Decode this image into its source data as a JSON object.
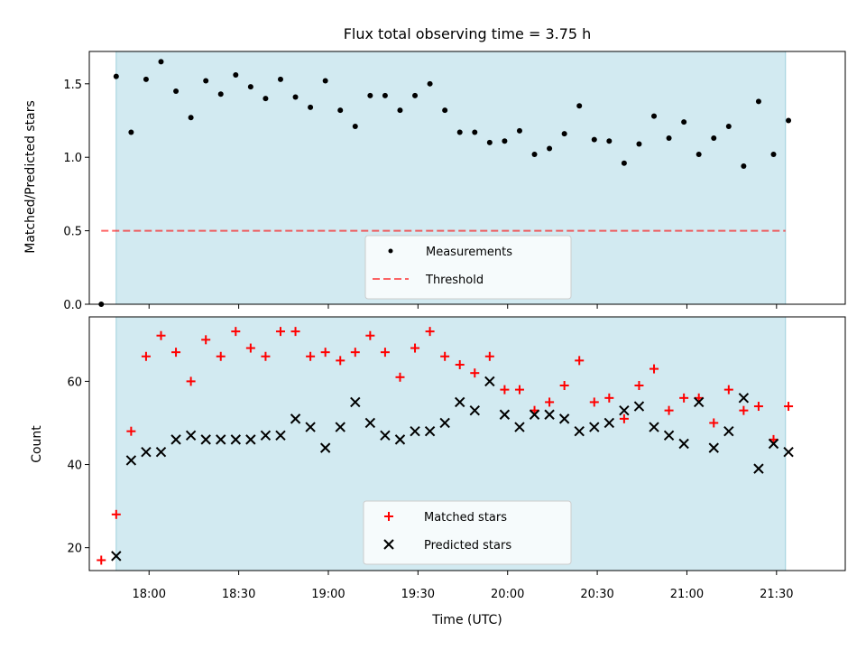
{
  "chart_data": [
    {
      "type": "scatter",
      "title": "Flux total observing time = 3.75 h",
      "xlabel": "",
      "ylabel": "Matched/Predicted stars",
      "xlim": [
        "17:40",
        "21:53"
      ],
      "ylim": [
        0,
        1.72
      ],
      "yticks": [
        "0.0",
        "0.5",
        "1.0",
        "1.5"
      ],
      "shaded_region": [
        "17:49",
        "21:33"
      ],
      "shaded_color": "#add8e6",
      "legend_position": "lower center",
      "series": [
        {
          "name": "Measurements",
          "marker": "dot",
          "color": "#000000",
          "points": [
            [
              "17:44",
              0.0
            ],
            [
              "17:49",
              1.55
            ],
            [
              "17:54",
              1.17
            ],
            [
              "17:59",
              1.53
            ],
            [
              "18:04",
              1.65
            ],
            [
              "18:09",
              1.45
            ],
            [
              "18:14",
              1.27
            ],
            [
              "18:19",
              1.52
            ],
            [
              "18:24",
              1.43
            ],
            [
              "18:29",
              1.56
            ],
            [
              "18:34",
              1.48
            ],
            [
              "18:39",
              1.4
            ],
            [
              "18:44",
              1.53
            ],
            [
              "18:49",
              1.41
            ],
            [
              "18:54",
              1.34
            ],
            [
              "18:59",
              1.52
            ],
            [
              "19:04",
              1.32
            ],
            [
              "19:09",
              1.21
            ],
            [
              "19:14",
              1.42
            ],
            [
              "19:19",
              1.42
            ],
            [
              "19:24",
              1.32
            ],
            [
              "19:29",
              1.42
            ],
            [
              "19:34",
              1.5
            ],
            [
              "19:39",
              1.32
            ],
            [
              "19:44",
              1.17
            ],
            [
              "19:49",
              1.17
            ],
            [
              "19:54",
              1.1
            ],
            [
              "19:59",
              1.11
            ],
            [
              "20:04",
              1.18
            ],
            [
              "20:09",
              1.02
            ],
            [
              "20:14",
              1.06
            ],
            [
              "20:19",
              1.16
            ],
            [
              "20:24",
              1.35
            ],
            [
              "20:29",
              1.12
            ],
            [
              "20:34",
              1.11
            ],
            [
              "20:39",
              0.96
            ],
            [
              "20:44",
              1.09
            ],
            [
              "20:49",
              1.28
            ],
            [
              "20:54",
              1.13
            ],
            [
              "20:59",
              1.24
            ],
            [
              "21:04",
              1.02
            ],
            [
              "21:09",
              1.13
            ],
            [
              "21:14",
              1.21
            ],
            [
              "21:19",
              0.94
            ],
            [
              "21:24",
              1.38
            ],
            [
              "21:29",
              1.02
            ],
            [
              "21:34",
              1.25
            ]
          ]
        },
        {
          "name": "Threshold",
          "marker": "dashed-line",
          "color": "#ff0000",
          "points": [
            [
              "17:44",
              0.5
            ],
            [
              "21:33",
              0.5
            ]
          ]
        }
      ]
    },
    {
      "type": "scatter",
      "title": "",
      "xlabel": "Time (UTC)",
      "ylabel": "Count",
      "xlim": [
        "17:40",
        "21:53"
      ],
      "ylim": [
        14.5,
        75.5
      ],
      "yticks": [
        "20",
        "40",
        "60"
      ],
      "xticks": [
        "18:00",
        "18:30",
        "19:00",
        "19:30",
        "20:00",
        "20:30",
        "21:00",
        "21:30"
      ],
      "shaded_region": [
        "17:49",
        "21:33"
      ],
      "shaded_color": "#add8e6",
      "legend_position": "lower center",
      "series": [
        {
          "name": "Matched stars",
          "marker": "plus",
          "color": "#ff0000",
          "points": [
            [
              "17:44",
              17
            ],
            [
              "17:49",
              28
            ],
            [
              "17:54",
              48
            ],
            [
              "17:59",
              66
            ],
            [
              "18:04",
              71
            ],
            [
              "18:09",
              67
            ],
            [
              "18:14",
              60
            ],
            [
              "18:19",
              70
            ],
            [
              "18:24",
              66
            ],
            [
              "18:29",
              72
            ],
            [
              "18:34",
              68
            ],
            [
              "18:39",
              66
            ],
            [
              "18:44",
              72
            ],
            [
              "18:49",
              72
            ],
            [
              "18:54",
              66
            ],
            [
              "18:59",
              67
            ],
            [
              "19:04",
              65
            ],
            [
              "19:09",
              67
            ],
            [
              "19:14",
              71
            ],
            [
              "19:19",
              67
            ],
            [
              "19:24",
              61
            ],
            [
              "19:29",
              68
            ],
            [
              "19:34",
              72
            ],
            [
              "19:39",
              66
            ],
            [
              "19:44",
              64
            ],
            [
              "19:49",
              62
            ],
            [
              "19:54",
              66
            ],
            [
              "19:59",
              58
            ],
            [
              "20:04",
              58
            ],
            [
              "20:09",
              53
            ],
            [
              "20:14",
              55
            ],
            [
              "20:19",
              59
            ],
            [
              "20:24",
              65
            ],
            [
              "20:29",
              55
            ],
            [
              "20:34",
              56
            ],
            [
              "20:39",
              51
            ],
            [
              "20:44",
              59
            ],
            [
              "20:49",
              63
            ],
            [
              "20:54",
              53
            ],
            [
              "20:59",
              56
            ],
            [
              "21:04",
              56
            ],
            [
              "21:09",
              50
            ],
            [
              "21:14",
              58
            ],
            [
              "21:19",
              53
            ],
            [
              "21:24",
              54
            ],
            [
              "21:29",
              46
            ],
            [
              "21:34",
              54
            ]
          ]
        },
        {
          "name": "Predicted stars",
          "marker": "x",
          "color": "#000000",
          "points": [
            [
              "17:49",
              18
            ],
            [
              "17:54",
              41
            ],
            [
              "17:59",
              43
            ],
            [
              "18:04",
              43
            ],
            [
              "18:09",
              46
            ],
            [
              "18:14",
              47
            ],
            [
              "18:19",
              46
            ],
            [
              "18:24",
              46
            ],
            [
              "18:29",
              46
            ],
            [
              "18:34",
              46
            ],
            [
              "18:39",
              47
            ],
            [
              "18:44",
              47
            ],
            [
              "18:49",
              51
            ],
            [
              "18:54",
              49
            ],
            [
              "18:59",
              44
            ],
            [
              "19:04",
              49
            ],
            [
              "19:09",
              55
            ],
            [
              "19:14",
              50
            ],
            [
              "19:19",
              47
            ],
            [
              "19:24",
              46
            ],
            [
              "19:29",
              48
            ],
            [
              "19:34",
              48
            ],
            [
              "19:39",
              50
            ],
            [
              "19:44",
              55
            ],
            [
              "19:49",
              53
            ],
            [
              "19:54",
              60
            ],
            [
              "19:59",
              52
            ],
            [
              "20:04",
              49
            ],
            [
              "20:09",
              52
            ],
            [
              "20:14",
              52
            ],
            [
              "20:19",
              51
            ],
            [
              "20:24",
              48
            ],
            [
              "20:29",
              49
            ],
            [
              "20:34",
              50
            ],
            [
              "20:39",
              53
            ],
            [
              "20:44",
              54
            ],
            [
              "20:49",
              49
            ],
            [
              "20:54",
              47
            ],
            [
              "20:59",
              45
            ],
            [
              "21:04",
              55
            ],
            [
              "21:09",
              44
            ],
            [
              "21:14",
              48
            ],
            [
              "21:19",
              56
            ],
            [
              "21:24",
              39
            ],
            [
              "21:29",
              45
            ],
            [
              "21:34",
              43
            ]
          ]
        }
      ]
    }
  ]
}
